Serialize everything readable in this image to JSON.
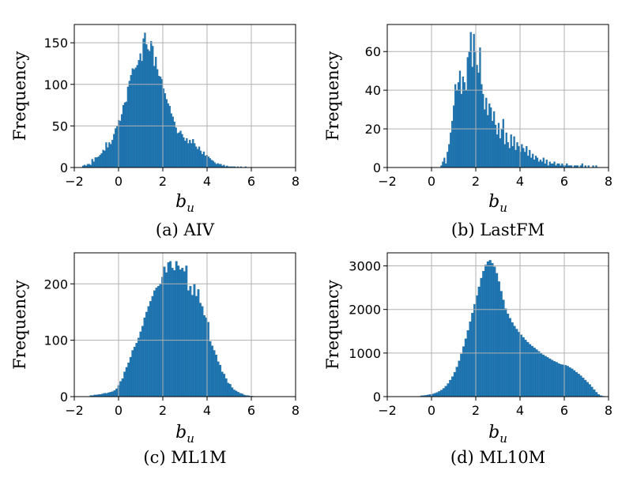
{
  "chart_data": [
    {
      "type": "bar",
      "caption": "(a) AIV",
      "xlabel": "b",
      "xlabel_sub": "u",
      "ylabel": "Frequency",
      "xlim": [
        -2,
        8
      ],
      "ylim": [
        0,
        172
      ],
      "xticks": [
        -2,
        0,
        2,
        4,
        6,
        8
      ],
      "yticks": [
        0,
        50,
        100,
        150
      ],
      "grid": true,
      "bar_color": "#1f77b4",
      "bin_width": 0.07,
      "x": [
        -1.64,
        -1.57,
        -1.5,
        -1.43,
        -1.36,
        -1.29,
        -1.22,
        -1.15,
        -1.08,
        -1.01,
        -0.94,
        -0.87,
        -0.8,
        -0.73,
        -0.66,
        -0.59,
        -0.52,
        -0.45,
        -0.38,
        -0.31,
        -0.24,
        -0.17,
        -0.1,
        -0.03,
        0.04,
        0.11,
        0.18,
        0.25,
        0.32,
        0.39,
        0.46,
        0.53,
        0.6,
        0.67,
        0.74,
        0.81,
        0.88,
        0.95,
        1.02,
        1.09,
        1.16,
        1.23,
        1.3,
        1.37,
        1.44,
        1.51,
        1.58,
        1.65,
        1.72,
        1.79,
        1.86,
        1.93,
        2.0,
        2.07,
        2.14,
        2.21,
        2.28,
        2.35,
        2.42,
        2.49,
        2.56,
        2.63,
        2.7,
        2.77,
        2.84,
        2.91,
        2.98,
        3.05,
        3.12,
        3.19,
        3.26,
        3.33,
        3.4,
        3.47,
        3.54,
        3.61,
        3.68,
        3.75,
        3.82,
        3.89,
        3.96,
        4.03,
        4.1,
        4.17,
        4.24,
        4.31,
        4.38,
        4.45,
        4.52,
        4.59,
        4.66,
        4.73,
        4.8,
        4.87,
        4.94,
        5.01,
        5.08,
        5.15,
        5.22,
        5.29,
        5.36,
        5.43,
        5.5,
        5.57,
        5.64,
        5.71,
        5.78,
        5.85,
        5.92,
        5.99
      ],
      "values": [
        2,
        3,
        2,
        4,
        4,
        3,
        10,
        7,
        12,
        12,
        13,
        15,
        17,
        21,
        20,
        30,
        24,
        30,
        28,
        33,
        40,
        47,
        50,
        57,
        56,
        64,
        75,
        78,
        79,
        97,
        104,
        111,
        119,
        118,
        120,
        123,
        129,
        137,
        128,
        155,
        162,
        148,
        142,
        140,
        152,
        146,
        122,
        133,
        118,
        110,
        109,
        106,
        95,
        89,
        82,
        77,
        74,
        65,
        61,
        55,
        48,
        41,
        42,
        44,
        40,
        36,
        32,
        35,
        29,
        33,
        29,
        34,
        29,
        25,
        22,
        25,
        20,
        16,
        19,
        14,
        15,
        13,
        11,
        9,
        8,
        6,
        4,
        5,
        4,
        4,
        2,
        3,
        1,
        2,
        1,
        1,
        1,
        1,
        1,
        0,
        1,
        0,
        1,
        0,
        0,
        1,
        0,
        0,
        0,
        0
      ]
    },
    {
      "type": "bar",
      "caption": "(b) LastFM",
      "xlabel": "b",
      "xlabel_sub": "u",
      "ylabel": "Frequency",
      "xlim": [
        -2,
        8
      ],
      "ylim": [
        0,
        74
      ],
      "xticks": [
        -2,
        0,
        2,
        4,
        6,
        8
      ],
      "yticks": [
        0,
        20,
        40,
        60
      ],
      "grid": true,
      "bar_color": "#1f77b4",
      "bin_width": 0.07,
      "x": [
        0.41,
        0.48,
        0.55,
        0.62,
        0.69,
        0.76,
        0.83,
        0.9,
        0.97,
        1.04,
        1.11,
        1.18,
        1.25,
        1.32,
        1.39,
        1.46,
        1.53,
        1.6,
        1.67,
        1.74,
        1.81,
        1.88,
        1.95,
        2.02,
        2.09,
        2.16,
        2.23,
        2.3,
        2.37,
        2.44,
        2.51,
        2.58,
        2.65,
        2.72,
        2.79,
        2.86,
        2.93,
        3.0,
        3.07,
        3.14,
        3.21,
        3.28,
        3.35,
        3.42,
        3.49,
        3.56,
        3.63,
        3.7,
        3.77,
        3.84,
        3.91,
        3.98,
        4.05,
        4.12,
        4.19,
        4.26,
        4.33,
        4.4,
        4.47,
        4.54,
        4.61,
        4.68,
        4.75,
        4.82,
        4.89,
        4.96,
        5.03,
        5.1,
        5.17,
        5.24,
        5.31,
        5.38,
        5.45,
        5.52,
        5.59,
        5.66,
        5.73,
        5.8,
        5.87,
        5.94,
        6.01,
        6.08,
        6.15,
        6.22,
        6.29,
        6.36,
        6.43,
        6.5,
        6.57,
        6.64,
        6.71,
        6.78,
        6.85,
        6.92,
        6.99,
        7.06,
        7.13,
        7.2,
        7.27,
        7.34,
        7.41
      ],
      "values": [
        1,
        3,
        5,
        2,
        8,
        12,
        18,
        24,
        32,
        43,
        40,
        44,
        50,
        38,
        47,
        44,
        40,
        57,
        60,
        70,
        52,
        69,
        60,
        53,
        49,
        62,
        43,
        38,
        30,
        36,
        27,
        33,
        31,
        24,
        29,
        22,
        17,
        23,
        15,
        20,
        25,
        12,
        18,
        13,
        10,
        17,
        11,
        16,
        9,
        13,
        11,
        8,
        12,
        10,
        8,
        11,
        6,
        9,
        5,
        7,
        4,
        6,
        5,
        3,
        4,
        3,
        5,
        2,
        4,
        1,
        3,
        2,
        2,
        3,
        1,
        2,
        2,
        1,
        2,
        1,
        1,
        2,
        1,
        1,
        1,
        0,
        1,
        1,
        1,
        0,
        1,
        2,
        0,
        1,
        0,
        1,
        0,
        0,
        1,
        0,
        1
      ]
    },
    {
      "type": "bar",
      "caption": "(c) ML1M",
      "xlabel": "b",
      "xlabel_sub": "u",
      "ylabel": "Frequency",
      "xlim": [
        -2,
        8
      ],
      "ylim": [
        0,
        255
      ],
      "xticks": [
        -2,
        0,
        2,
        4,
        6,
        8
      ],
      "yticks": [
        0,
        100,
        200
      ],
      "grid": true,
      "bar_color": "#1f77b4",
      "bin_width": 0.09,
      "x": [
        -1.3,
        -1.21,
        -1.12,
        -1.03,
        -0.94,
        -0.85,
        -0.76,
        -0.67,
        -0.58,
        -0.49,
        -0.4,
        -0.31,
        -0.22,
        -0.13,
        -0.04,
        0.05,
        0.14,
        0.23,
        0.32,
        0.41,
        0.5,
        0.59,
        0.68,
        0.77,
        0.86,
        0.95,
        1.04,
        1.13,
        1.22,
        1.31,
        1.4,
        1.49,
        1.58,
        1.67,
        1.76,
        1.85,
        1.94,
        2.03,
        2.12,
        2.21,
        2.3,
        2.39,
        2.48,
        2.57,
        2.66,
        2.75,
        2.84,
        2.93,
        3.02,
        3.11,
        3.2,
        3.29,
        3.38,
        3.47,
        3.56,
        3.65,
        3.74,
        3.83,
        3.92,
        4.01,
        4.1,
        4.19,
        4.28,
        4.37,
        4.46,
        4.55,
        4.64,
        4.73,
        4.82,
        4.91,
        5.0,
        5.09,
        5.18,
        5.27,
        5.36,
        5.45,
        5.54,
        5.63,
        5.72,
        5.81,
        5.9,
        5.99
      ],
      "values": [
        2,
        2,
        3,
        3,
        4,
        4,
        5,
        6,
        6,
        7,
        8,
        9,
        11,
        14,
        20,
        27,
        32,
        44,
        52,
        60,
        70,
        82,
        88,
        95,
        104,
        115,
        125,
        140,
        150,
        160,
        169,
        178,
        188,
        193,
        196,
        200,
        212,
        230,
        220,
        238,
        240,
        228,
        224,
        240,
        232,
        225,
        228,
        222,
        232,
        188,
        196,
        180,
        200,
        178,
        190,
        166,
        160,
        144,
        140,
        132,
        98,
        90,
        82,
        74,
        62,
        56,
        44,
        40,
        32,
        24,
        22,
        16,
        12,
        10,
        8,
        6,
        5,
        3,
        2,
        2,
        1,
        1
      ]
    },
    {
      "type": "bar",
      "caption": "(d) ML10M",
      "xlabel": "b",
      "xlabel_sub": "u",
      "ylabel": "Frequency",
      "xlim": [
        -2,
        8
      ],
      "ylim": [
        0,
        3300
      ],
      "xticks": [
        -2,
        0,
        2,
        4,
        6,
        8
      ],
      "yticks": [
        0,
        1000,
        2000,
        3000
      ],
      "grid": true,
      "bar_color": "#1f77b4",
      "bin_width": 0.1,
      "x": [
        -0.5,
        -0.4,
        -0.3,
        -0.2,
        -0.1,
        0.0,
        0.1,
        0.2,
        0.3,
        0.4,
        0.5,
        0.6,
        0.7,
        0.8,
        0.9,
        1.0,
        1.1,
        1.2,
        1.3,
        1.4,
        1.5,
        1.6,
        1.7,
        1.8,
        1.9,
        2.0,
        2.1,
        2.2,
        2.3,
        2.4,
        2.5,
        2.6,
        2.7,
        2.8,
        2.9,
        3.0,
        3.1,
        3.2,
        3.3,
        3.4,
        3.5,
        3.6,
        3.7,
        3.8,
        3.9,
        4.0,
        4.1,
        4.2,
        4.3,
        4.4,
        4.5,
        4.6,
        4.7,
        4.8,
        4.9,
        5.0,
        5.1,
        5.2,
        5.3,
        5.4,
        5.5,
        5.6,
        5.7,
        5.8,
        5.9,
        6.0,
        6.1,
        6.2,
        6.3,
        6.4,
        6.5,
        6.6,
        6.7,
        6.8,
        6.9,
        7.0,
        7.1,
        7.2,
        7.3,
        7.4,
        7.5,
        7.6,
        7.7,
        7.8,
        7.9
      ],
      "values": [
        20,
        25,
        30,
        40,
        50,
        60,
        75,
        95,
        120,
        150,
        190,
        240,
        300,
        380,
        460,
        560,
        680,
        820,
        980,
        1150,
        1330,
        1520,
        1720,
        1920,
        2120,
        2320,
        2520,
        2720,
        2880,
        3020,
        3100,
        3130,
        3060,
        2980,
        2830,
        2640,
        2420,
        2220,
        2020,
        1900,
        1800,
        1700,
        1620,
        1550,
        1480,
        1420,
        1360,
        1300,
        1250,
        1200,
        1160,
        1120,
        1080,
        1040,
        1000,
        960,
        930,
        900,
        870,
        840,
        810,
        790,
        760,
        740,
        730,
        720,
        700,
        670,
        640,
        600,
        560,
        520,
        480,
        430,
        380,
        330,
        280,
        220,
        160,
        100,
        50,
        25,
        10,
        5,
        3
      ]
    }
  ]
}
